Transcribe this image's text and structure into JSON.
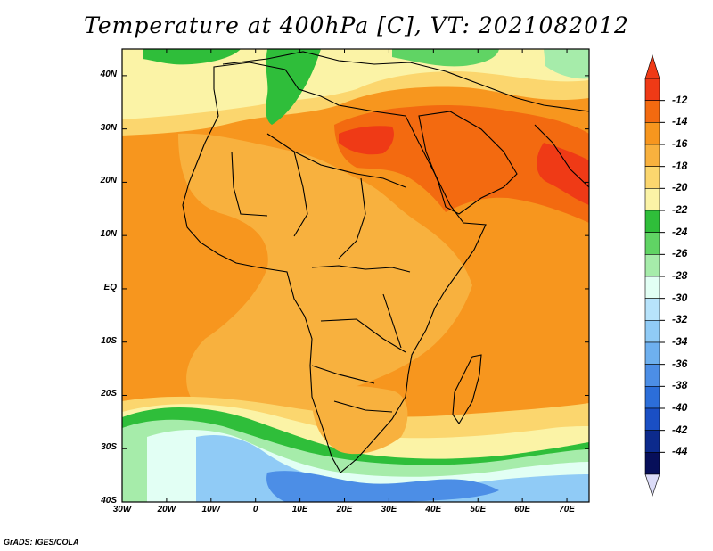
{
  "title": "Temperature at 400hPa [C], VT: 2021082012",
  "credit": "GrADS: IGES/COLA",
  "map": {
    "lon_range": [
      -30,
      75
    ],
    "lat_range": [
      -40,
      45
    ],
    "lat_labels": [
      {
        "lat": 40,
        "text": "40N"
      },
      {
        "lat": 30,
        "text": "30N"
      },
      {
        "lat": 20,
        "text": "20N"
      },
      {
        "lat": 10,
        "text": "10N"
      },
      {
        "lat": 0,
        "text": "EQ"
      },
      {
        "lat": -10,
        "text": "10S"
      },
      {
        "lat": -20,
        "text": "20S"
      },
      {
        "lat": -30,
        "text": "30S"
      },
      {
        "lat": -40,
        "text": "40S"
      }
    ],
    "lon_labels": [
      {
        "lon": -30,
        "text": "30W"
      },
      {
        "lon": -20,
        "text": "20W"
      },
      {
        "lon": -10,
        "text": "10W"
      },
      {
        "lon": 0,
        "text": "0"
      },
      {
        "lon": 10,
        "text": "10E"
      },
      {
        "lon": 20,
        "text": "20E"
      },
      {
        "lon": 30,
        "text": "30E"
      },
      {
        "lon": 40,
        "text": "40E"
      },
      {
        "lon": 50,
        "text": "50E"
      },
      {
        "lon": 60,
        "text": "60E"
      },
      {
        "lon": 70,
        "text": "70E"
      }
    ]
  },
  "colorbar": {
    "levels": [
      -12,
      -14,
      -16,
      -18,
      -20,
      -22,
      -24,
      -26,
      -28,
      -30,
      -32,
      -34,
      -36,
      -38,
      -40,
      -42,
      -44
    ],
    "colors": [
      "#ef3a16",
      "#f36a10",
      "#f7961e",
      "#f8b13e",
      "#fbd66e",
      "#fbf3a6",
      "#2fbe3a",
      "#60d464",
      "#a6ecaa",
      "#e2fff4",
      "#b7e3fb",
      "#90cbf6",
      "#6eb0ef",
      "#4c8ee6",
      "#2c6ed9",
      "#1a4fc4",
      "#0c2a8c",
      "#070f5a"
    ],
    "upper_arrow_color": "#ef3a16",
    "lower_arrow_color": "#dcdcf8"
  },
  "layers": [
    {
      "color": "#f7961e",
      "label": "-16 to -14"
    },
    {
      "color": "#f8b13e",
      "label": "-18 to -16"
    },
    {
      "color": "#fbd66e",
      "label": "-20 to -18"
    },
    {
      "color": "#f36a10",
      "label": "-14 to -12"
    },
    {
      "color": "#fbf3a6",
      "label": "-22 to -20"
    },
    {
      "color": "#2fbe3a",
      "label": "-24 to -22"
    },
    {
      "color": "#a6ecaa",
      "label": "-28 to -26"
    },
    {
      "color": "#e2fff4",
      "label": "-30 to -28"
    },
    {
      "color": "#90cbf6",
      "label": "-34 to -32"
    },
    {
      "color": "#4c8ee6",
      "label": "-38 to -36"
    }
  ]
}
